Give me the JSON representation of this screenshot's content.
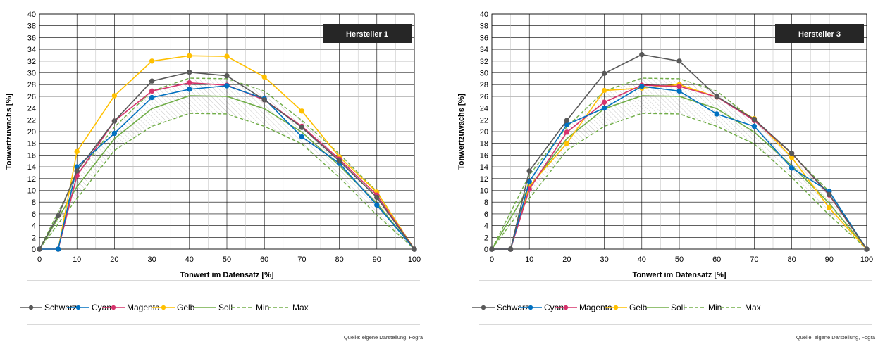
{
  "chart_data": [
    {
      "type": "line",
      "title": "",
      "badge": "Hersteller 1",
      "xlabel": "Tonwert im Datensatz [%]",
      "ylabel": "Tonwertzuwachs [%]",
      "xlim": [
        0,
        100
      ],
      "ylim": [
        0,
        40
      ],
      "xticks": [
        0,
        10,
        20,
        30,
        40,
        50,
        60,
        70,
        80,
        90,
        100
      ],
      "yticks": [
        0,
        2,
        4,
        6,
        8,
        10,
        12,
        14,
        16,
        18,
        20,
        22,
        24,
        26,
        28,
        30,
        32,
        34,
        36,
        38,
        40
      ],
      "grid": true,
      "legend": "bottom",
      "source": "Quelle: eigene Darstellung, Fogra",
      "series": [
        {
          "name": "Schwarz",
          "color": "#595959",
          "style": "solid",
          "markers": true,
          "x": [
            0,
            5,
            10,
            20,
            30,
            40,
            50,
            60,
            70,
            80,
            90,
            100
          ],
          "y": [
            0,
            5.7,
            13.3,
            21.8,
            28.6,
            30.1,
            29.5,
            25.4,
            20.7,
            15.0,
            8.8,
            0
          ]
        },
        {
          "name": "Cyan",
          "color": "#0070c0",
          "style": "solid",
          "markers": true,
          "x": [
            0,
            5,
            10,
            20,
            30,
            40,
            50,
            60,
            70,
            80,
            90,
            100
          ],
          "y": [
            0,
            0,
            14.0,
            19.7,
            25.8,
            27.2,
            27.8,
            25.6,
            19.1,
            14.6,
            7.5,
            0
          ]
        },
        {
          "name": "Magenta",
          "color": "#d6336c",
          "style": "solid",
          "markers": true,
          "x": [
            0,
            5,
            10,
            20,
            30,
            40,
            50,
            60,
            70,
            80,
            90,
            100
          ],
          "y": [
            0,
            0,
            12.5,
            21.8,
            26.9,
            28.3,
            27.9,
            25.4,
            20.9,
            15.3,
            9.2,
            0
          ]
        },
        {
          "name": "Gelb",
          "color": "#ffc000",
          "style": "solid",
          "markers": true,
          "x": [
            0,
            5,
            10,
            20,
            30,
            40,
            50,
            60,
            70,
            80,
            90,
            100
          ],
          "y": [
            0,
            0,
            16.6,
            26.1,
            32.0,
            32.9,
            32.8,
            29.3,
            23.5,
            15.7,
            9.7,
            0
          ]
        },
        {
          "name": "Soll",
          "color": "#70ad47",
          "style": "solid",
          "markers": false,
          "x": [
            0,
            10,
            20,
            30,
            40,
            50,
            60,
            70,
            80,
            90,
            100
          ],
          "y": [
            0,
            10.6,
            18.8,
            23.9,
            26.1,
            26.0,
            23.9,
            19.9,
            14.2,
            7.8,
            0
          ]
        },
        {
          "name": "Min",
          "color": "#70ad47",
          "style": "dashed",
          "markers": false,
          "x": [
            0,
            10,
            20,
            30,
            40,
            50,
            60,
            70,
            80,
            90,
            100
          ],
          "y": [
            0,
            8.6,
            16.8,
            20.9,
            23.1,
            23.0,
            20.9,
            17.9,
            12.2,
            5.8,
            0
          ]
        },
        {
          "name": "Max",
          "color": "#70ad47",
          "style": "dashed",
          "markers": false,
          "x": [
            0,
            10,
            20,
            30,
            40,
            50,
            60,
            70,
            80,
            90,
            100
          ],
          "y": [
            0,
            12.6,
            20.8,
            26.9,
            29.1,
            29.0,
            26.9,
            21.9,
            16.2,
            9.8,
            0
          ]
        }
      ]
    },
    {
      "type": "line",
      "title": "",
      "badge": "Hersteller 3",
      "xlabel": "Tonwert im Datensatz [%]",
      "ylabel": "Tonwertzuwachs [%]",
      "xlim": [
        0,
        100
      ],
      "ylim": [
        0,
        40
      ],
      "xticks": [
        0,
        10,
        20,
        30,
        40,
        50,
        60,
        70,
        80,
        90,
        100
      ],
      "yticks": [
        0,
        2,
        4,
        6,
        8,
        10,
        12,
        14,
        16,
        18,
        20,
        22,
        24,
        26,
        28,
        30,
        32,
        34,
        36,
        38,
        40
      ],
      "grid": true,
      "legend": "bottom",
      "source": "Quelle: eigene Darstellung, Fogra",
      "series": [
        {
          "name": "Schwarz",
          "color": "#595959",
          "style": "solid",
          "markers": true,
          "x": [
            0,
            5,
            10,
            20,
            30,
            40,
            50,
            60,
            70,
            80,
            90,
            100
          ],
          "y": [
            0,
            0,
            13.3,
            21.9,
            29.9,
            33.1,
            32.0,
            26.0,
            22.1,
            16.3,
            9.3,
            0
          ]
        },
        {
          "name": "Cyan",
          "color": "#0070c0",
          "style": "solid",
          "markers": true,
          "x": [
            0,
            5,
            10,
            20,
            30,
            40,
            50,
            60,
            70,
            80,
            90,
            100
          ],
          "y": [
            0,
            0,
            11.5,
            21.2,
            24.0,
            27.7,
            26.9,
            23.0,
            20.9,
            13.8,
            9.8,
            0
          ]
        },
        {
          "name": "Magenta",
          "color": "#d6336c",
          "style": "solid",
          "markers": true,
          "x": [
            0,
            5,
            10,
            20,
            30,
            40,
            50,
            60,
            70,
            80,
            90,
            100
          ],
          "y": [
            0,
            0,
            10.2,
            19.9,
            25.0,
            27.9,
            27.7,
            25.9,
            21.9,
            16.3,
            9.2,
            0
          ]
        },
        {
          "name": "Gelb",
          "color": "#ffc000",
          "style": "solid",
          "markers": true,
          "x": [
            0,
            5,
            10,
            20,
            30,
            40,
            50,
            60,
            70,
            80,
            90,
            100
          ],
          "y": [
            0,
            0,
            10.7,
            18.0,
            27.0,
            27.4,
            28.0,
            25.9,
            22.2,
            15.6,
            7.0,
            0
          ]
        },
        {
          "name": "Soll",
          "color": "#70ad47",
          "style": "solid",
          "markers": false,
          "x": [
            0,
            10,
            20,
            30,
            40,
            50,
            60,
            70,
            80,
            90,
            100
          ],
          "y": [
            0,
            10.6,
            18.8,
            23.9,
            26.1,
            26.0,
            23.9,
            19.9,
            14.2,
            7.8,
            0
          ]
        },
        {
          "name": "Min",
          "color": "#70ad47",
          "style": "dashed",
          "markers": false,
          "x": [
            0,
            10,
            20,
            30,
            40,
            50,
            60,
            70,
            80,
            90,
            100
          ],
          "y": [
            0,
            8.6,
            16.8,
            20.9,
            23.1,
            23.0,
            20.9,
            17.9,
            12.2,
            5.8,
            0
          ]
        },
        {
          "name": "Max",
          "color": "#70ad47",
          "style": "dashed",
          "markers": false,
          "x": [
            0,
            10,
            20,
            30,
            40,
            50,
            60,
            70,
            80,
            90,
            100
          ],
          "y": [
            0,
            12.6,
            20.8,
            26.9,
            29.1,
            29.0,
            26.9,
            21.9,
            16.2,
            9.8,
            0
          ]
        }
      ]
    }
  ]
}
